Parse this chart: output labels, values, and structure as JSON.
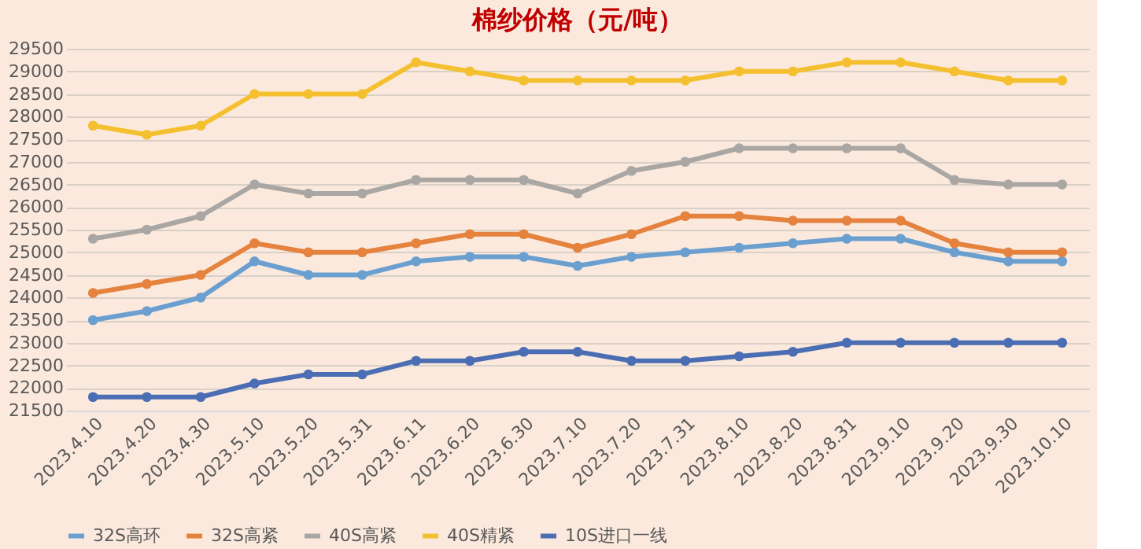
{
  "chart_data": {
    "type": "line",
    "title": "棉纱价格（元/吨）",
    "categories": [
      "2023.4.10",
      "2023.4.20",
      "2023.4.30",
      "2023.5.10",
      "2023.5.20",
      "2023.5.31",
      "2023.6.11",
      "2023.6.20",
      "2023.6.30",
      "2023.7.10",
      "2023.7.20",
      "2023.7.31",
      "2023.8.10",
      "2023.8.20",
      "2023.8.31",
      "2023.9.10",
      "2023.9.20",
      "2023.9.30",
      "2023.10.10"
    ],
    "series": [
      {
        "name": "32S高环",
        "color": "#6a9fd0",
        "values": [
          23500,
          23700,
          24000,
          24800,
          24500,
          24500,
          24800,
          24900,
          24900,
          24700,
          24900,
          25000,
          25100,
          25200,
          25300,
          25300,
          25000,
          24800,
          24800
        ]
      },
      {
        "name": "32S高紧",
        "color": "#e4823e",
        "values": [
          24100,
          24300,
          24500,
          25200,
          25000,
          25000,
          25200,
          25400,
          25400,
          25100,
          25400,
          25800,
          25800,
          25700,
          25700,
          25700,
          25200,
          25000,
          25000
        ]
      },
      {
        "name": "40S高紧",
        "color": "#a9a6a3",
        "values": [
          25300,
          25500,
          25800,
          26500,
          26300,
          26300,
          26600,
          26600,
          26600,
          26300,
          26800,
          27000,
          27300,
          27300,
          27300,
          27300,
          26600,
          26500,
          26500
        ]
      },
      {
        "name": "40S精紧",
        "color": "#f5c030",
        "values": [
          27800,
          27600,
          27800,
          28500,
          28500,
          28500,
          29200,
          29000,
          28800,
          28800,
          28800,
          28800,
          29000,
          29000,
          29200,
          29200,
          29000,
          28800,
          28800
        ]
      },
      {
        "name": "10S进口一线",
        "color": "#4a6db3",
        "values": [
          21800,
          21800,
          21800,
          22100,
          22300,
          22300,
          22600,
          22600,
          22800,
          22800,
          22600,
          22600,
          22700,
          22800,
          23000,
          23000,
          23000,
          23000,
          23000
        ]
      }
    ],
    "ylim": [
      21500,
      29500
    ],
    "yticks": [
      21500,
      22000,
      22500,
      23000,
      23500,
      24000,
      24500,
      25000,
      25500,
      26000,
      26500,
      27000,
      27500,
      28000,
      28500,
      29000,
      29500
    ],
    "grid": "y",
    "legend": "bottom",
    "marker": "circle",
    "line_style": "solid"
  }
}
